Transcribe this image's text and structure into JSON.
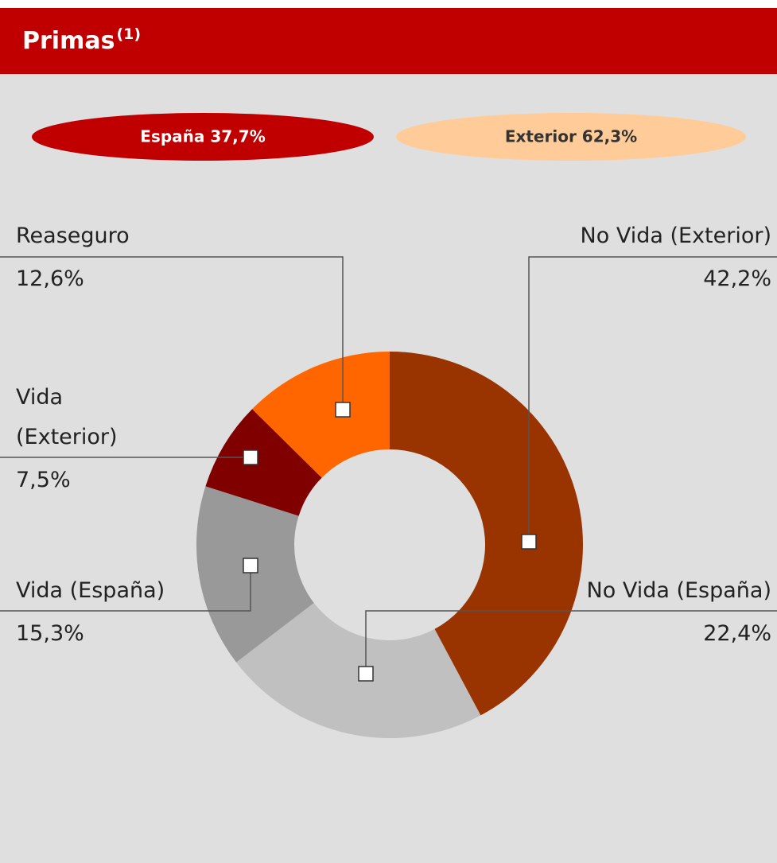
{
  "chart_data": {
    "type": "donut",
    "title": "Primas",
    "title_note": "(1)",
    "annotations": [
      "España 37,7%",
      "Exterior 62,3%"
    ],
    "annotation_colors": [
      "#c00000",
      "#ffcc99"
    ],
    "annotation_text_colors": [
      "#ffffff",
      "#333333"
    ],
    "categories": [
      "No Vida (Exterior)",
      "No Vida (España)",
      "Vida (España)",
      "Vida (Exterior)",
      "Reaseguro"
    ],
    "values": [
      42.2,
      22.4,
      15.3,
      7.5,
      12.6
    ],
    "value_labels": [
      "42,2%",
      "22,4%",
      "15,3%",
      "7,5%",
      "12,6%"
    ],
    "colors": [
      "#993300",
      "#c0c0c0",
      "#999999",
      "#800000",
      "#ff6600"
    ]
  }
}
